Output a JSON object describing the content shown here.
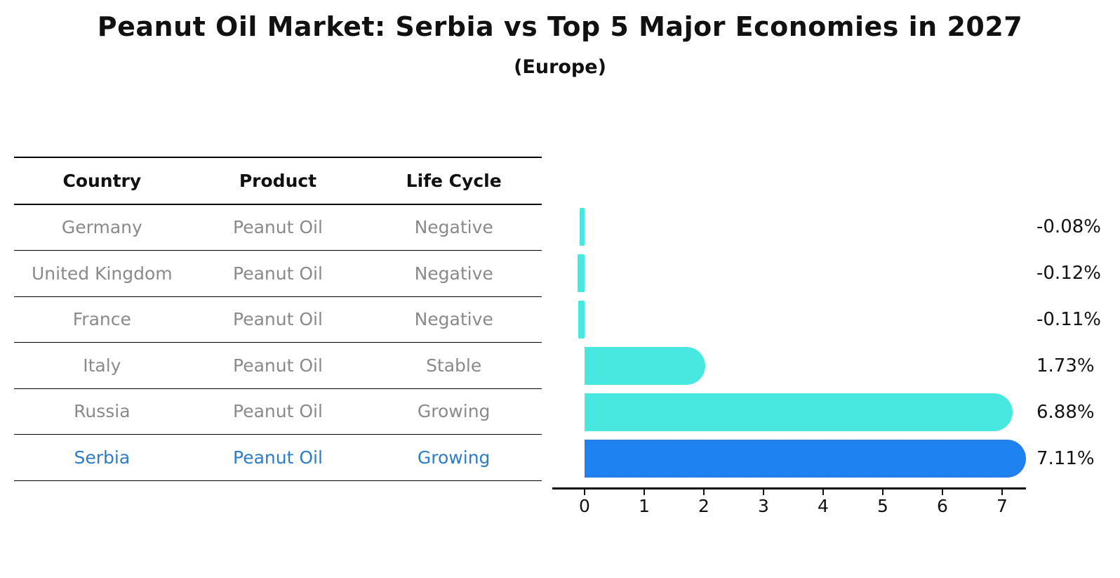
{
  "title": "Peanut Oil Market: Serbia vs Top 5 Major Economies in 2027",
  "subtitle": "(Europe)",
  "table": {
    "headers": [
      "Country",
      "Product",
      "Life Cycle"
    ],
    "rows": [
      {
        "country": "Germany",
        "product": "Peanut Oil",
        "life_cycle": "Negative"
      },
      {
        "country": "United Kingdom",
        "product": "Peanut Oil",
        "life_cycle": "Negative"
      },
      {
        "country": "France",
        "product": "Peanut Oil",
        "life_cycle": "Negative"
      },
      {
        "country": "Italy",
        "product": "Peanut Oil",
        "life_cycle": "Stable"
      },
      {
        "country": "Russia",
        "product": "Peanut Oil",
        "life_cycle": "Growing"
      },
      {
        "country": "Serbia",
        "product": "Peanut Oil",
        "life_cycle": "Growing"
      }
    ]
  },
  "chart_data": {
    "type": "bar",
    "orientation": "horizontal",
    "title": "Peanut Oil Market: Serbia vs Top 5 Major Economies in 2027",
    "subtitle": "(Europe)",
    "categories": [
      "Germany",
      "United Kingdom",
      "France",
      "Italy",
      "Russia",
      "Serbia"
    ],
    "values": [
      -0.08,
      -0.12,
      -0.11,
      1.73,
      6.88,
      7.11
    ],
    "value_labels": [
      "-0.08%",
      "-0.12%",
      "-0.11%",
      "1.73%",
      "6.88%",
      "7.11%"
    ],
    "unit": "percent",
    "xticks": [
      0,
      1,
      2,
      3,
      4,
      5,
      6,
      7
    ],
    "xlim": [
      -0.55,
      7.4
    ],
    "grid": false,
    "legend": false,
    "highlight_index": 5,
    "colors": {
      "bar_default": "#48e8e0",
      "bar_highlight": "#1e82f0",
      "highlight_text": "#2e7cc8",
      "axis": "#111111",
      "row_text": "#8a8a8a"
    }
  }
}
